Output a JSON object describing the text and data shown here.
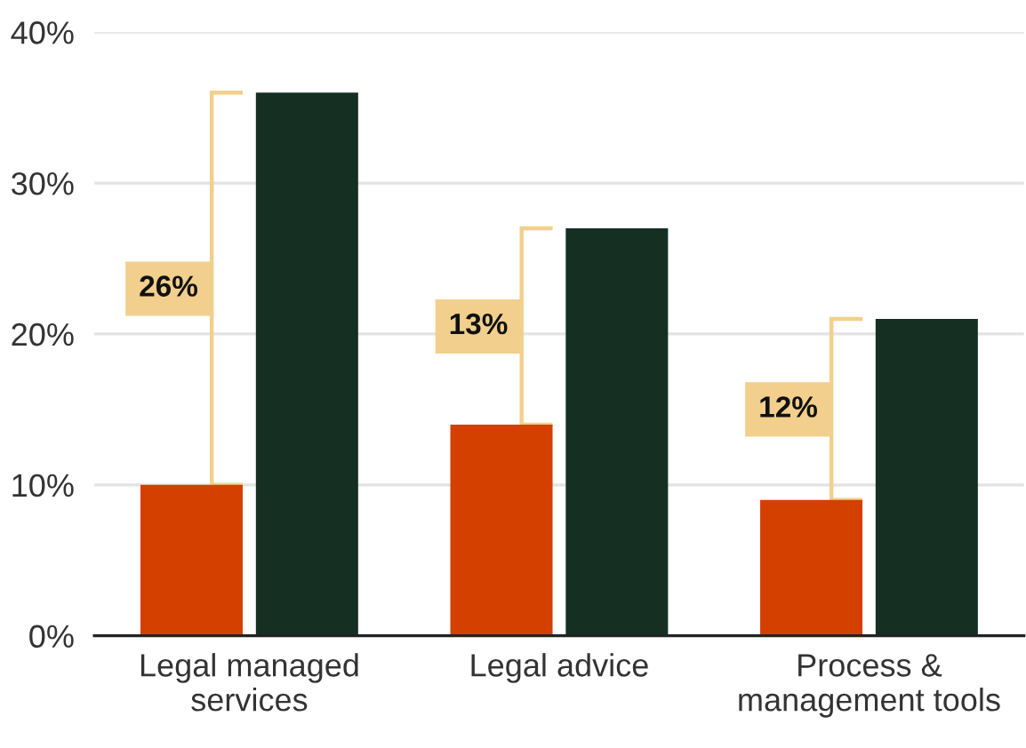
{
  "chart_data": {
    "type": "bar",
    "categories": [
      "Legal managed services",
      "Legal advice",
      "Process & management tools"
    ],
    "series": [
      {
        "color": "#d44000",
        "values": [
          10,
          14,
          9
        ]
      },
      {
        "color": "#152f23",
        "values": [
          36,
          27,
          21
        ]
      }
    ],
    "ylim": [
      0,
      40
    ],
    "yticks": [
      {
        "value": 0,
        "label": "0%"
      },
      {
        "value": 10,
        "label": "10%"
      },
      {
        "value": 20,
        "label": "20%"
      },
      {
        "value": 30,
        "label": "30%"
      },
      {
        "value": 40,
        "label": "40%"
      }
    ],
    "grid": "y",
    "annotations": [
      {
        "text": "26%",
        "x": "Legal managed services",
        "y": 23
      },
      {
        "text": "13%",
        "x": "Legal advice",
        "y": 20.5
      },
      {
        "text": "12%",
        "x": "Process & management tools",
        "y": 15
      }
    ]
  }
}
